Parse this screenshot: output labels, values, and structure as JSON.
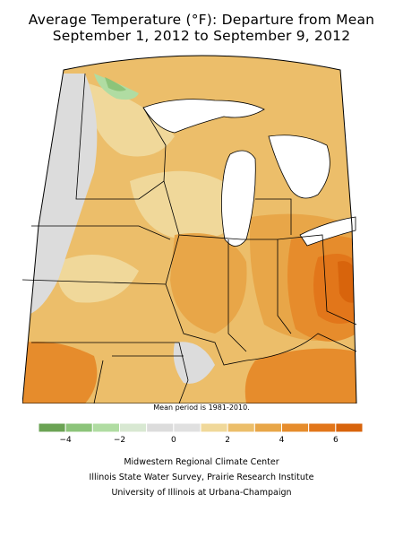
{
  "title_line1": "Average Temperature (°F): Departure from Mean",
  "title_line2": "September 1, 2012 to September 9, 2012",
  "mean_period_note": "Mean period is 1981-2010.",
  "legend": {
    "units": "°F",
    "bins": [
      {
        "from": -5,
        "to": -4,
        "color": "#6ba354"
      },
      {
        "from": -4,
        "to": -3,
        "color": "#8cc47a"
      },
      {
        "from": -3,
        "to": -2,
        "color": "#b0dca2"
      },
      {
        "from": -2,
        "to": -1,
        "color": "#d8e8d2"
      },
      {
        "from": -1,
        "to": 0,
        "color": "#dcdcdc"
      },
      {
        "from": 0,
        "to": 1,
        "color": "#e0e0e0"
      },
      {
        "from": 1,
        "to": 2,
        "color": "#f0d89a"
      },
      {
        "from": 2,
        "to": 3,
        "color": "#ecbe6a"
      },
      {
        "from": 3,
        "to": 4,
        "color": "#e8a648"
      },
      {
        "from": 4,
        "to": 5,
        "color": "#e68c2c"
      },
      {
        "from": 5,
        "to": 6,
        "color": "#e2761a"
      },
      {
        "from": 6,
        "to": 7,
        "color": "#d8640c"
      }
    ],
    "tick_labels": [
      {
        "value": -4,
        "label": "−4"
      },
      {
        "value": -2,
        "label": "−2"
      },
      {
        "value": 0,
        "label": "0"
      },
      {
        "value": 2,
        "label": "2"
      },
      {
        "value": 4,
        "label": "4"
      },
      {
        "value": 6,
        "label": "6"
      }
    ]
  },
  "credits": [
    "Midwestern Regional Climate Center",
    "Illinois State Water Survey, Prairie Research Institute",
    "University of Illinois at Urbana-Champaign"
  ],
  "colors": {
    "near_zero": "#dcdcdc",
    "plus_1_2": "#f0d89a",
    "plus_2_3": "#ecbe6a",
    "plus_3_4": "#e8a648",
    "plus_4_5": "#e68c2c",
    "plus_5_6": "#e2761a",
    "plus_6_7": "#d8640c",
    "minus_2_3": "#b0dca2",
    "minus_3_4": "#8cc47a",
    "water": "#ffffff",
    "border": "#000000"
  }
}
